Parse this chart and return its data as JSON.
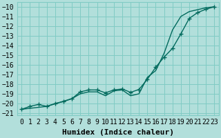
{
  "xlabel": "Humidex (Indice chaleur)",
  "background_color": "#b2dfdb",
  "grid_color": "#80cbc4",
  "line_color": "#00695c",
  "xlim": [
    -0.5,
    23.5
  ],
  "ylim": [
    -21.2,
    -9.5
  ],
  "yticks": [
    -10,
    -11,
    -12,
    -13,
    -14,
    -15,
    -16,
    -17,
    -18,
    -19,
    -20,
    -21
  ],
  "xticks": [
    0,
    1,
    2,
    3,
    4,
    5,
    6,
    7,
    8,
    9,
    10,
    11,
    12,
    13,
    14,
    15,
    16,
    17,
    18,
    19,
    20,
    21,
    22,
    23
  ],
  "line1_x": [
    0,
    1,
    2,
    3,
    4,
    5,
    6,
    7,
    8,
    9,
    10,
    11,
    12,
    13,
    14,
    15,
    16,
    17,
    18,
    19,
    20,
    21,
    22,
    23
  ],
  "line1_y": [
    -20.6,
    -20.3,
    -20.1,
    -20.3,
    -20.0,
    -19.8,
    -19.5,
    -18.8,
    -18.6,
    -18.6,
    -18.9,
    -18.6,
    -18.5,
    -18.85,
    -18.55,
    -17.5,
    -16.25,
    -15.2,
    -14.3,
    -12.8,
    -11.2,
    -10.6,
    -10.25,
    -10.0
  ],
  "line2_x": [
    0,
    3,
    6,
    7,
    8,
    9,
    10,
    11,
    12,
    13,
    14,
    15,
    16,
    17,
    18,
    19,
    20,
    21,
    22,
    23
  ],
  "line2_y": [
    -20.6,
    -20.3,
    -19.5,
    -19.0,
    -18.8,
    -18.8,
    -19.2,
    -18.7,
    -18.6,
    -19.2,
    -19.0,
    -17.3,
    -16.6,
    -14.8,
    -12.4,
    -11.0,
    -10.5,
    -10.3,
    -10.1,
    -10.0
  ],
  "marker": "+",
  "markersize": 5,
  "linewidth": 1.0,
  "font_family": "monospace",
  "xlabel_fontsize": 8,
  "tick_fontsize": 7
}
